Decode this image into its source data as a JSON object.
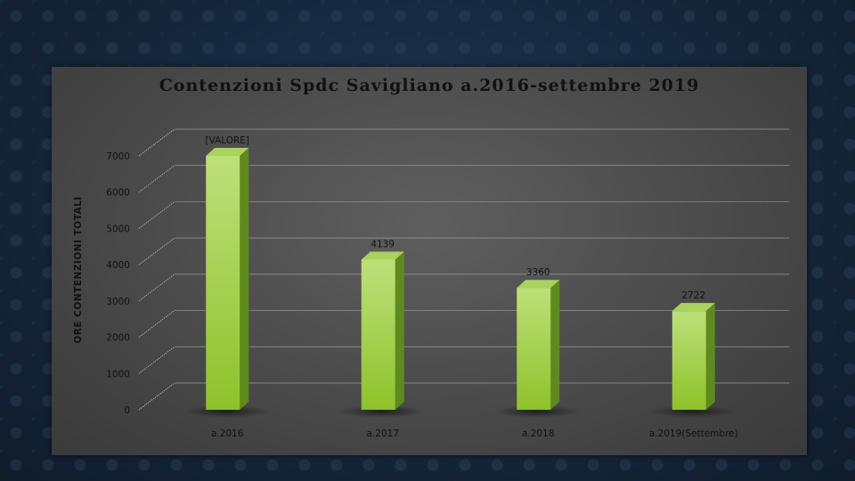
{
  "chart_data": {
    "type": "bar",
    "title": "Contenzioni Spdc Savigliano a.2016-settembre 2019",
    "xlabel": "",
    "ylabel": "ORE CONTENZIONI TOTALI",
    "categories": [
      "a.2016",
      "a.2017",
      "a.2018",
      "a.2019(Settembre)"
    ],
    "values": [
      7000,
      4139,
      3360,
      2722
    ],
    "data_labels": [
      "[VALORE]",
      "4139",
      "3360",
      "2722"
    ],
    "ylim": [
      0,
      7000
    ],
    "yticks": [
      0,
      1000,
      2000,
      3000,
      4000,
      5000,
      6000,
      7000
    ],
    "ytick_labels": [
      "0",
      "1000",
      "2000",
      "3000",
      "4000",
      "5000",
      "6000",
      "7000"
    ],
    "grid": true,
    "legend": "none",
    "style": "3d-column"
  },
  "colors": {
    "bar_front_top": "#bde07a",
    "bar_front_bottom": "#8ec22a",
    "bar_side": "#5f8a1c",
    "bar_top": "#a9d35a",
    "panel": "#4e4e4e",
    "text": "#111111"
  }
}
